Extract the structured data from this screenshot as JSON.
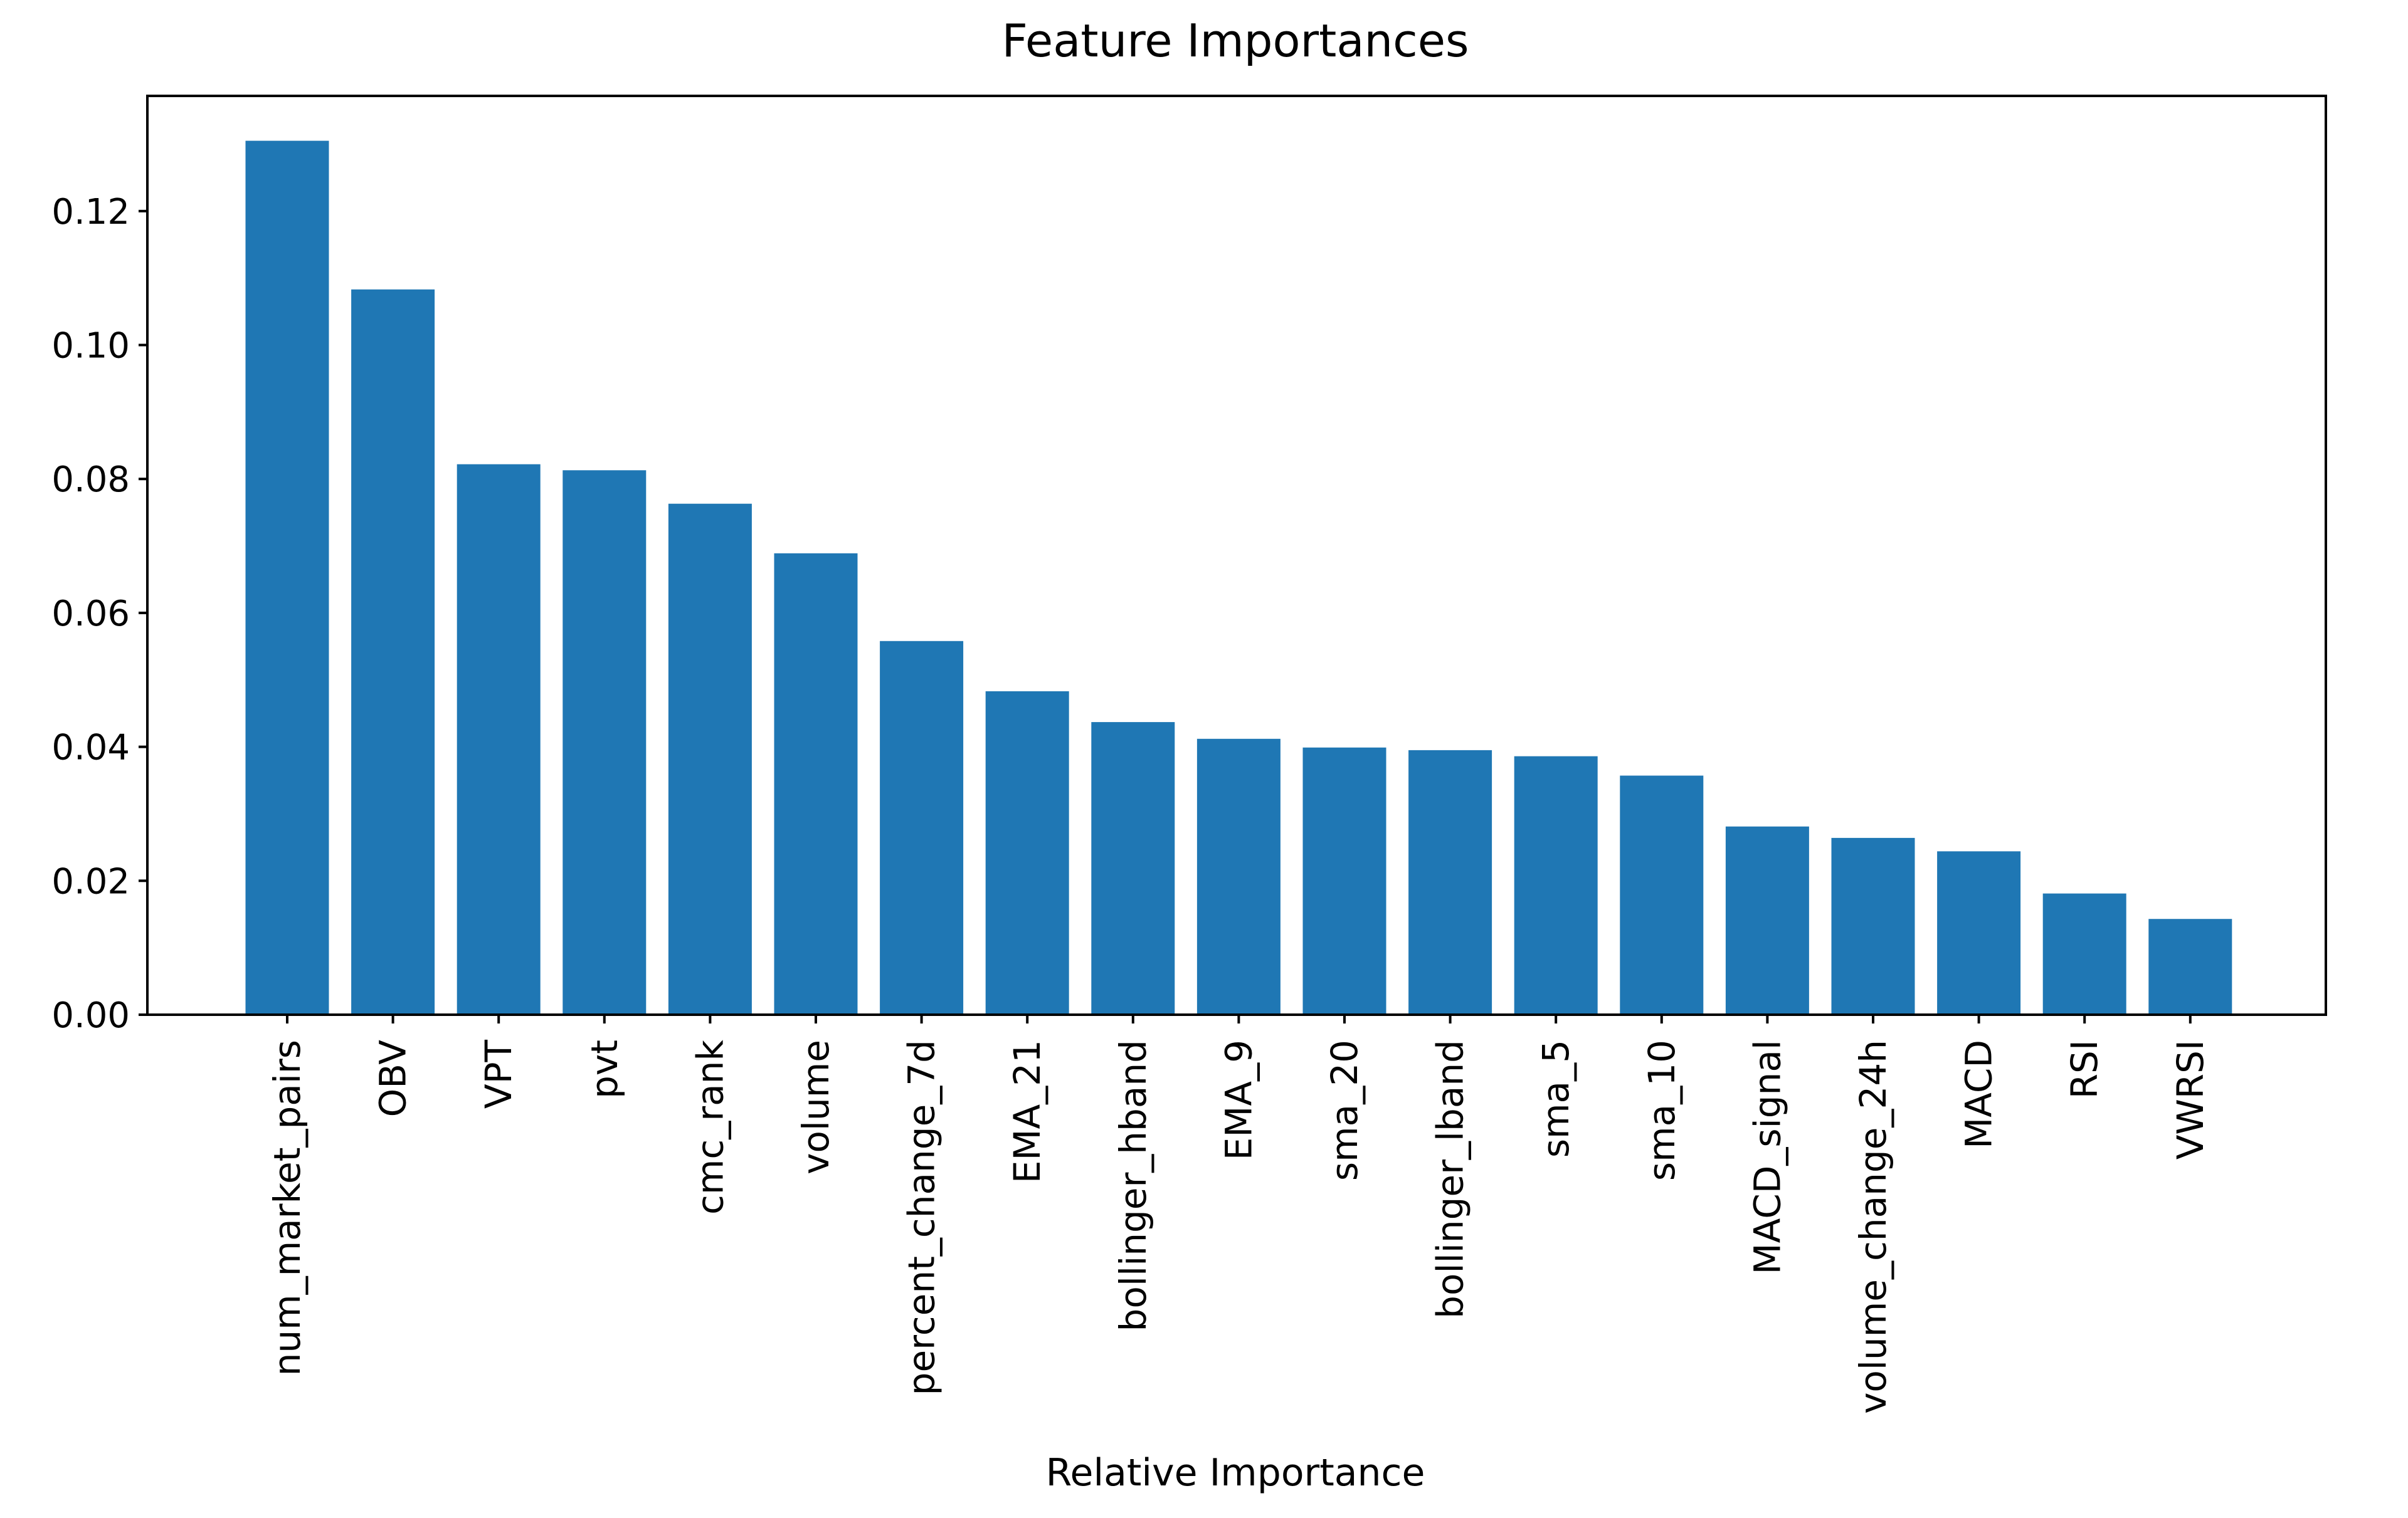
{
  "chart_data": {
    "type": "bar",
    "title": "Feature Importances",
    "xlabel": "Relative Importance",
    "ylabel": "",
    "categories": [
      "num_market_pairs",
      "OBV",
      "VPT",
      "pvt",
      "cmc_rank",
      "volume",
      "percent_change_7d",
      "EMA_21",
      "bollinger_hband",
      "EMA_9",
      "sma_20",
      "bollinger_lband",
      "sma_5",
      "sma_10",
      "MACD_signal",
      "volume_change_24h",
      "MACD",
      "RSI",
      "VWRSI"
    ],
    "values": [
      0.1305,
      0.1083,
      0.0822,
      0.0813,
      0.0763,
      0.0689,
      0.0558,
      0.0483,
      0.0437,
      0.0412,
      0.0399,
      0.0395,
      0.0386,
      0.0357,
      0.0281,
      0.0264,
      0.0244,
      0.0181,
      0.0143
    ],
    "ylim": [
      0,
      0.1372
    ],
    "yticks": [
      "0.00",
      "0.02",
      "0.04",
      "0.06",
      "0.08",
      "0.10",
      "0.12"
    ],
    "ytick_values": [
      0,
      0.02,
      0.04,
      0.06,
      0.08,
      0.1,
      0.12
    ],
    "grid": false,
    "legend": "none",
    "bar_color": "#1f77b4"
  }
}
